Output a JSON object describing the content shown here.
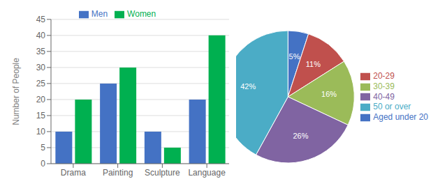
{
  "chart_data": [
    {
      "type": "bar",
      "categories": [
        "Drama",
        "Painting",
        "Sculpture",
        "Language"
      ],
      "series": [
        {
          "name": "Men",
          "color": "#4472C4",
          "values": [
            10,
            25,
            10,
            20
          ]
        },
        {
          "name": "Women",
          "color": "#00B050",
          "values": [
            20,
            30,
            5,
            40
          ]
        }
      ],
      "y_label": "Number of People",
      "ylim": [
        0,
        45
      ],
      "yticks": [
        0,
        5,
        10,
        15,
        20,
        25,
        30,
        35,
        40,
        45
      ],
      "grid": true,
      "legend": "top"
    },
    {
      "type": "pie",
      "categories": [
        "Aged under 20",
        "20-29",
        "30-39",
        "40-49",
        "50 or over"
      ],
      "values": [
        5,
        11,
        16,
        26,
        42
      ],
      "value_labels": [
        "5%",
        "11%",
        "16%",
        "26%",
        "42%"
      ],
      "colors": [
        "#4472C4",
        "#C0504D",
        "#9BBB59",
        "#8064A2",
        "#4BACC6"
      ],
      "data_labels": true,
      "legend": "right"
    }
  ]
}
